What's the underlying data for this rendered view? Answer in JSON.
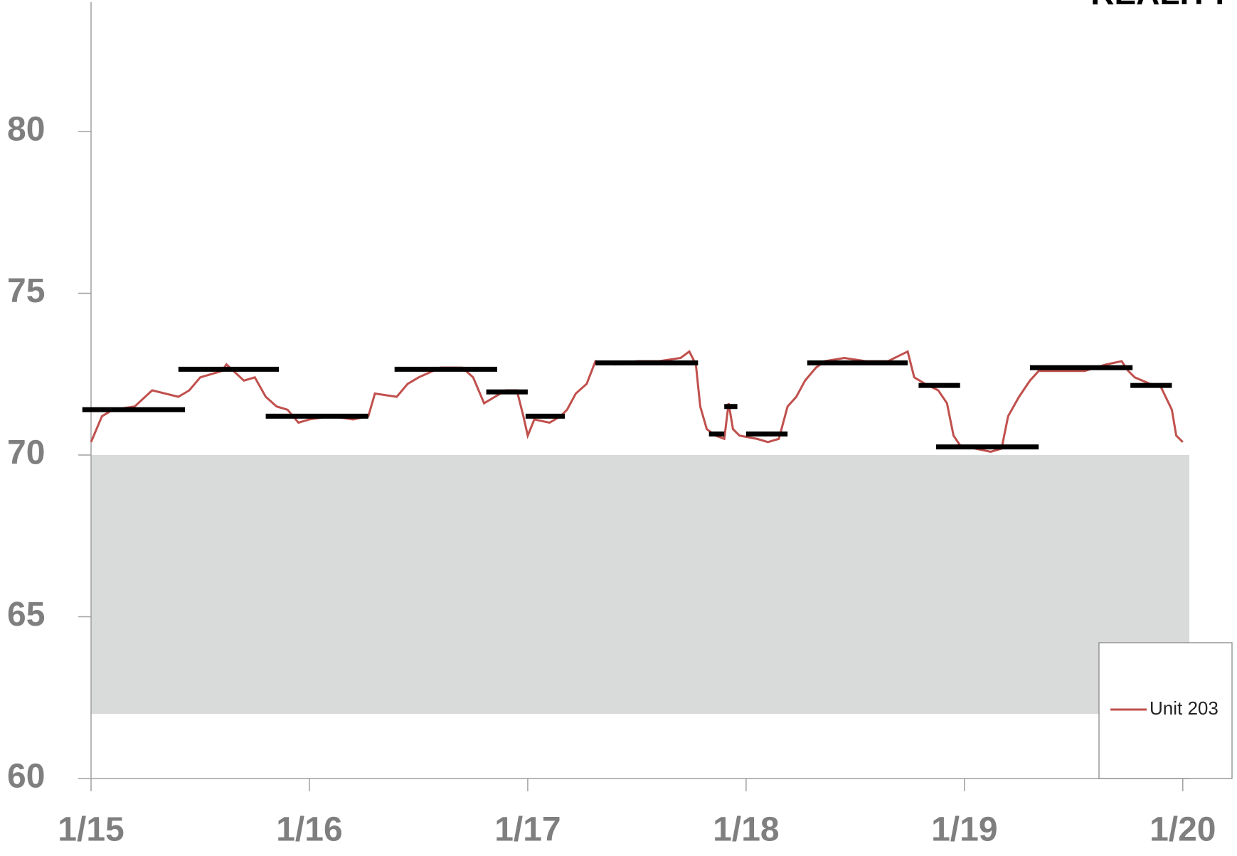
{
  "chart_data": {
    "type": "line",
    "title": "REALITY",
    "series": [
      {
        "name": "Unit 203",
        "color": "#c0504d",
        "x": [
          0,
          0.05,
          0.1,
          0.2,
          0.28,
          0.4,
          0.45,
          0.5,
          0.6,
          0.62,
          0.7,
          0.75,
          0.8,
          0.85,
          0.9,
          0.95,
          1.0,
          1.1,
          1.2,
          1.27,
          1.3,
          1.4,
          1.45,
          1.5,
          1.6,
          1.7,
          1.75,
          1.8,
          1.85,
          1.9,
          1.95,
          1.98,
          2.0,
          2.03,
          2.1,
          2.15,
          2.18,
          2.22,
          2.27,
          2.31,
          2.4,
          2.5,
          2.6,
          2.7,
          2.74,
          2.77,
          2.79,
          2.82,
          2.86,
          2.9,
          2.92,
          2.94,
          2.97,
          3.05,
          3.1,
          3.15,
          3.19,
          3.23,
          3.27,
          3.32,
          3.36,
          3.45,
          3.55,
          3.65,
          3.74,
          3.77,
          3.82,
          3.88,
          3.92,
          3.95,
          3.98,
          4.05,
          4.12,
          4.17,
          4.2,
          4.25,
          4.3,
          4.34,
          4.45,
          4.55,
          4.65,
          4.72,
          4.75,
          4.78,
          4.85,
          4.9,
          4.95,
          4.97,
          5.0
        ],
        "values": [
          70.4,
          71.2,
          71.4,
          71.5,
          72.0,
          71.8,
          72.0,
          72.4,
          72.6,
          72.8,
          72.3,
          72.4,
          71.8,
          71.5,
          71.4,
          71.0,
          71.1,
          71.2,
          71.1,
          71.2,
          71.9,
          71.8,
          72.2,
          72.4,
          72.7,
          72.7,
          72.4,
          71.6,
          71.8,
          72.0,
          72.0,
          71.2,
          70.6,
          71.1,
          71.0,
          71.2,
          71.4,
          71.9,
          72.2,
          72.9,
          72.8,
          72.9,
          72.9,
          73.0,
          73.2,
          72.8,
          71.5,
          70.8,
          70.6,
          70.5,
          71.6,
          70.8,
          70.6,
          70.5,
          70.4,
          70.5,
          71.5,
          71.8,
          72.3,
          72.7,
          72.9,
          73.0,
          72.9,
          72.9,
          73.2,
          72.4,
          72.2,
          72.0,
          71.6,
          70.6,
          70.3,
          70.2,
          70.1,
          70.2,
          71.2,
          71.8,
          72.3,
          72.6,
          72.6,
          72.6,
          72.8,
          72.9,
          72.6,
          72.4,
          72.2,
          72.1,
          71.4,
          70.6,
          70.4
        ]
      }
    ],
    "segments": [
      {
        "x": [
          -0.04,
          0.43
        ],
        "value": 71.4
      },
      {
        "x": [
          0.4,
          0.86
        ],
        "value": 72.65
      },
      {
        "x": [
          0.8,
          1.27
        ],
        "value": 71.2
      },
      {
        "x": [
          1.39,
          1.86
        ],
        "value": 72.65
      },
      {
        "x": [
          1.81,
          2.0
        ],
        "value": 71.95
      },
      {
        "x": [
          1.99,
          2.17
        ],
        "value": 71.2
      },
      {
        "x": [
          2.31,
          2.78
        ],
        "value": 72.85
      },
      {
        "x": [
          2.83,
          2.9
        ],
        "value": 70.65
      },
      {
        "x": [
          2.9,
          2.96
        ],
        "value": 71.5
      },
      {
        "x": [
          3.0,
          3.19
        ],
        "value": 70.65
      },
      {
        "x": [
          3.28,
          3.74
        ],
        "value": 72.85
      },
      {
        "x": [
          3.79,
          3.98
        ],
        "value": 72.15
      },
      {
        "x": [
          3.87,
          4.34
        ],
        "value": 70.25
      },
      {
        "x": [
          4.3,
          4.77
        ],
        "value": 72.7
      },
      {
        "x": [
          4.76,
          4.95
        ],
        "value": 72.15
      }
    ],
    "band": {
      "ylim": [
        62,
        70
      ],
      "color": "#d9dada"
    },
    "xlim": [
      0,
      5.03
    ],
    "xticks": [
      {
        "value": 0,
        "label": "1/15"
      },
      {
        "value": 1,
        "label": "1/16"
      },
      {
        "value": 2,
        "label": "1/17"
      },
      {
        "value": 3,
        "label": "1/18"
      },
      {
        "value": 4,
        "label": "1/19"
      },
      {
        "value": 5,
        "label": "1/20"
      }
    ],
    "ylim": [
      60,
      84
    ],
    "yticks": [
      60,
      65,
      70,
      75,
      80
    ]
  }
}
